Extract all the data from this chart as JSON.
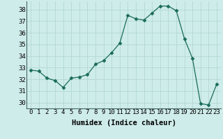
{
  "x": [
    0,
    1,
    2,
    3,
    4,
    5,
    6,
    7,
    8,
    9,
    10,
    11,
    12,
    13,
    14,
    15,
    16,
    17,
    18,
    19,
    20,
    21,
    22,
    23
  ],
  "y": [
    32.8,
    32.7,
    32.1,
    31.9,
    31.3,
    32.1,
    32.2,
    32.4,
    33.3,
    33.6,
    34.3,
    35.1,
    37.5,
    37.2,
    37.1,
    37.7,
    38.3,
    38.3,
    37.9,
    35.5,
    33.8,
    29.9,
    29.8,
    31.6
  ],
  "xlabel": "Humidex (Indice chaleur)",
  "ylim": [
    29.5,
    38.7
  ],
  "xlim": [
    -0.5,
    23.5
  ],
  "yticks": [
    30,
    31,
    32,
    33,
    34,
    35,
    36,
    37,
    38
  ],
  "xticks": [
    0,
    1,
    2,
    3,
    4,
    5,
    6,
    7,
    8,
    9,
    10,
    11,
    12,
    13,
    14,
    15,
    16,
    17,
    18,
    19,
    20,
    21,
    22,
    23
  ],
  "line_color": "#1a6b5a",
  "marker": "D",
  "marker_size": 2.5,
  "bg_color": "#ceecea",
  "grid_color": "#aed4d0",
  "tick_label_fontsize": 6.5,
  "xlabel_fontsize": 7.5
}
